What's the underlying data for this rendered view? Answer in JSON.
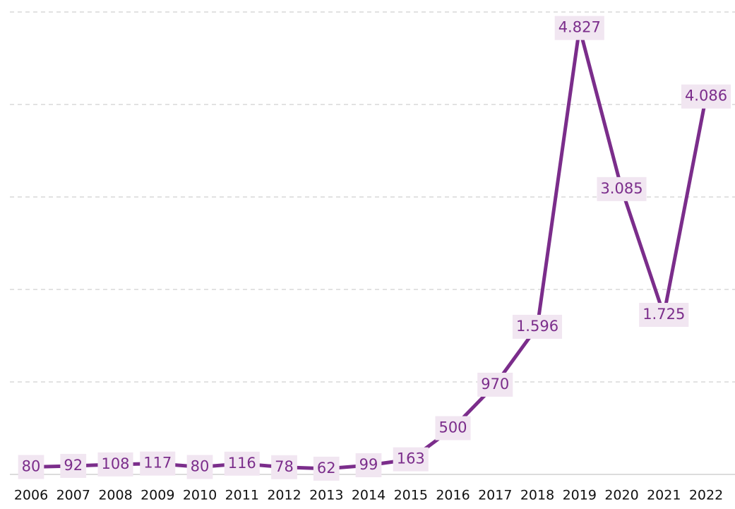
{
  "chart_data": {
    "type": "line",
    "categories": [
      "2006",
      "2007",
      "2008",
      "2009",
      "2010",
      "2011",
      "2012",
      "2013",
      "2014",
      "2015",
      "2016",
      "2017",
      "2018",
      "2019",
      "2020",
      "2021",
      "2022"
    ],
    "values": [
      80,
      92,
      108,
      117,
      80,
      116,
      78,
      62,
      99,
      163,
      500,
      970,
      1596,
      4827,
      3085,
      1725,
      4086
    ],
    "value_labels": [
      "80",
      "92",
      "108",
      "117",
      "80",
      "116",
      "78",
      "62",
      "99",
      "163",
      "500",
      "970",
      "1.596",
      "4.827",
      "3.085",
      "1.725",
      "4.086"
    ],
    "color": "#7b2d8b",
    "ylim": [
      0,
      5000
    ],
    "yticks": [
      0,
      1000,
      2000,
      3000,
      4000,
      5000
    ],
    "grid": true
  }
}
